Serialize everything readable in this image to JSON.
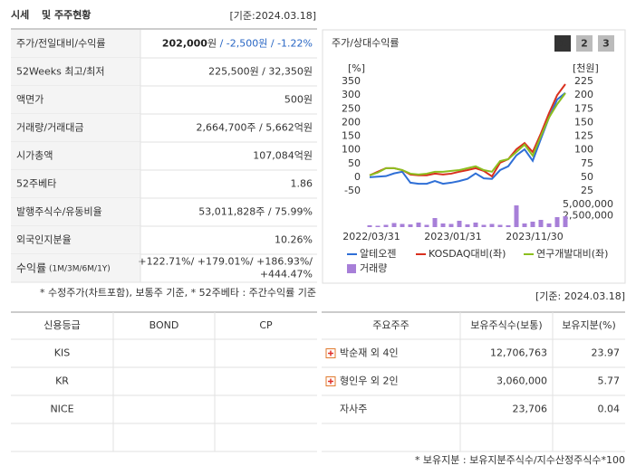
{
  "header": {
    "title": "시세",
    "subtitle": "및 주주현황",
    "date": "[기준:2024.03.18]"
  },
  "price_table": {
    "rows": [
      {
        "label": "주가/전일대비/수익률",
        "value": [
          "202,000",
          "원",
          " / -2,500원 / -1.22%"
        ]
      },
      {
        "label": "52Weeks 최고/최저",
        "value": "225,500원 / 32,350원"
      },
      {
        "label": "액면가",
        "value": "500원"
      },
      {
        "label": "거래량/거래대금",
        "value": "2,664,700주 / 5,662억원"
      },
      {
        "label": "시가총액",
        "value": "107,084억원"
      },
      {
        "label": "52주베타",
        "value": "1.86"
      },
      {
        "label": "발행주식수/유동비율",
        "value": "53,011,828주 / 75.99%"
      },
      {
        "label": "외국인지분율",
        "value": "10.26%"
      },
      {
        "label": [
          "수익률",
          " (1M/3M/6M/1Y)"
        ],
        "value": [
          "+122.71%/ +179.01%/ +186.93%/",
          "+444.47%"
        ]
      }
    ]
  },
  "price_note": "* 수정주가(차트포함), 보통주 기준, * 52주베타 : 주간수익률 기준",
  "chart_tabs": [
    "1",
    "2",
    "3"
  ],
  "chart_data": {
    "type": "line",
    "title": "주가/상대수익률",
    "categories": [
      "2022/03/31",
      null,
      null,
      null,
      null,
      null,
      null,
      null,
      null,
      null,
      "2023/01/31",
      null,
      null,
      null,
      null,
      null,
      null,
      null,
      null,
      null,
      "2023/11/30",
      null,
      null,
      null,
      null
    ],
    "y_label": "[%]",
    "y2_label": "[천원]",
    "ylim": [
      -50,
      350
    ],
    "yticks": [
      -50,
      0,
      50,
      100,
      150,
      200,
      250,
      300,
      350
    ],
    "y2lim": [
      25,
      225
    ],
    "y2ticks": [
      25,
      50,
      75,
      100,
      125,
      150,
      175,
      200,
      225
    ],
    "y3lim": [
      0,
      5000000
    ],
    "y3ticks": [
      {
        "value": 2500000,
        "label": "2,500,000"
      },
      {
        "value": 5000000,
        "label": "5,000,000"
      }
    ],
    "series": [
      {
        "name": "알테오젠",
        "color": "#2f6fd6",
        "axis": "y2",
        "values": [
          50,
          51,
          52,
          57,
          60,
          40,
          38,
          38,
          43,
          38,
          40,
          43,
          47,
          57,
          48,
          47,
          63,
          70,
          90,
          101,
          80,
          120,
          159,
          192,
          204
        ]
      },
      {
        "name": "KOSDAQ대비(좌)",
        "color": "#d9301e",
        "axis": "y",
        "values": [
          7,
          20,
          33,
          33,
          26,
          10,
          7,
          7,
          13,
          10,
          13,
          20,
          26,
          33,
          23,
          3,
          53,
          66,
          102,
          125,
          92,
          160,
          234,
          300,
          340
        ]
      },
      {
        "name": "연구개발대비(좌)",
        "color": "#8cbf1f",
        "axis": "y",
        "values": [
          7,
          17,
          33,
          33,
          26,
          13,
          10,
          13,
          20,
          20,
          23,
          26,
          33,
          40,
          26,
          20,
          59,
          66,
          92,
          119,
          79,
          150,
          218,
          267,
          307
        ]
      },
      {
        "name": "거래량",
        "color": "#a77fd8",
        "axis": "y3",
        "type": "bar",
        "values": [
          400000,
          300000,
          500000,
          900000,
          700000,
          600000,
          1000000,
          500000,
          2000000,
          800000,
          700000,
          1400000,
          600000,
          1000000,
          500000,
          700000,
          500000,
          400000,
          4800000,
          800000,
          1200000,
          1600000,
          800000,
          2200000,
          2400000
        ]
      }
    ]
  },
  "credit_table": {
    "header": [
      "신용등급",
      "BOND",
      "CP"
    ],
    "rows": [
      [
        "KIS"
      ],
      [
        "KR"
      ],
      [
        "NICE"
      ]
    ]
  },
  "shareholders": {
    "date": "[기준: 2024.03.18]",
    "header": [
      "주요주주",
      "보유주식수(보통)",
      "보유지분(%)"
    ],
    "rows": [
      [
        "박순재 외 4인",
        "12,706,763",
        "23.97"
      ],
      [
        "형인우 외 2인",
        "3,060,000",
        "5.77"
      ],
      [
        "자사주",
        "23,706",
        "0.04"
      ]
    ],
    "note": "* 보유지분 : 보유지분주식수/지수산정주식수*100"
  }
}
